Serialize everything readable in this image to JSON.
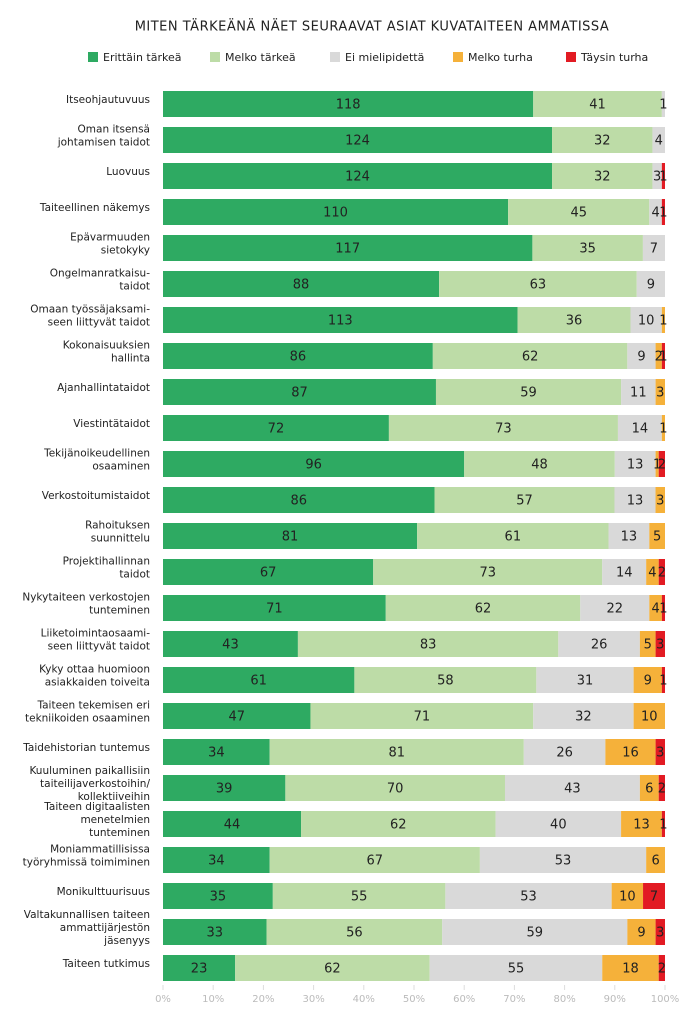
{
  "chart_data": {
    "type": "bar_stacked_100",
    "orientation": "horizontal",
    "title": "MITEN TÄRKEÄNÄ NÄET SEURAAVAT ASIAT KUVATAITEEN AMMATISSA",
    "categories": [
      "Itseohjautuvuus",
      "Oman itsensä\njohtamisen taidot",
      "Luovuus",
      "Taiteellinen näkemys",
      "Epävarmuuden\nsietokyky",
      "Ongelmanratkaisu-\ntaidot",
      "Omaan työssäjaksami-\nseen liittyvät taidot",
      "Kokonaisuuksien\nhallinta",
      "Ajanhallintataidot",
      "Viestintätaidot",
      "Tekijänoikeudellinen\nosaaminen",
      "Verkostoitumistaidot",
      "Rahoituksen\nsuunnittelu",
      "Projektihallinnan\ntaidot",
      "Nykytaiteen verkostojen\ntunteminen",
      "Liiketoimintaosaami-\nseen liittyvät taidot",
      "Kyky ottaa huomioon\nasiakkaiden toiveita",
      "Taiteen tekemisen eri\ntekniikoiden osaaminen",
      "Taidehistorian tuntemus",
      "Kuuluminen paikallisiin\ntaiteilijaverkostoihin/\nkollektiiveihin",
      "Taiteen digitaalisten\nmenetelmien\ntunteminen",
      "Moniammatillisissa\ntyöryhmissä toimiminen",
      "Monikulttuurisuus",
      "Valtakunnallisen taiteen\nammattijärjestön\njäsenyys",
      "Taiteen tutkimus"
    ],
    "series": [
      {
        "name": "Erittäin tärkeä",
        "color": "#2eaa62",
        "values": [
          118,
          124,
          124,
          110,
          117,
          88,
          113,
          86,
          87,
          72,
          96,
          86,
          81,
          67,
          71,
          43,
          61,
          47,
          34,
          39,
          44,
          34,
          35,
          33,
          23
        ]
      },
      {
        "name": "Melko tärkeä",
        "color": "#bddca7",
        "values": [
          41,
          32,
          32,
          45,
          35,
          63,
          36,
          62,
          59,
          73,
          48,
          57,
          61,
          73,
          62,
          83,
          58,
          71,
          81,
          70,
          62,
          67,
          55,
          56,
          62
        ]
      },
      {
        "name": "Ei mielipidettä",
        "color": "#d9d9d9",
        "values": [
          1,
          4,
          3,
          4,
          7,
          9,
          10,
          9,
          11,
          14,
          13,
          13,
          13,
          14,
          22,
          26,
          31,
          32,
          26,
          43,
          40,
          53,
          53,
          59,
          55
        ]
      },
      {
        "name": "Melko turha",
        "color": "#f5b13a",
        "values": [
          null,
          null,
          null,
          null,
          null,
          null,
          1,
          2,
          3,
          1,
          1,
          3,
          5,
          4,
          4,
          5,
          9,
          10,
          16,
          6,
          13,
          6,
          10,
          9,
          18
        ]
      },
      {
        "name": "Täysin turha",
        "color": "#e21b23",
        "values": [
          null,
          null,
          1,
          1,
          null,
          null,
          null,
          1,
          null,
          null,
          2,
          null,
          null,
          2,
          1,
          3,
          1,
          null,
          3,
          2,
          1,
          null,
          7,
          3,
          2
        ]
      }
    ],
    "xlim": [
      0,
      100
    ],
    "xticks": [
      {
        "value": 0,
        "label": "0%"
      },
      {
        "value": 10,
        "label": "10%"
      },
      {
        "value": 20,
        "label": "20%"
      },
      {
        "value": 30,
        "label": "30%"
      },
      {
        "value": 40,
        "label": "40%"
      },
      {
        "value": 50,
        "label": "50%"
      },
      {
        "value": 60,
        "label": "60%"
      },
      {
        "value": 70,
        "label": "70%"
      },
      {
        "value": 80,
        "label": "80%"
      },
      {
        "value": 90,
        "label": "90%"
      },
      {
        "value": 100,
        "label": "100%"
      }
    ],
    "legend": "top"
  }
}
